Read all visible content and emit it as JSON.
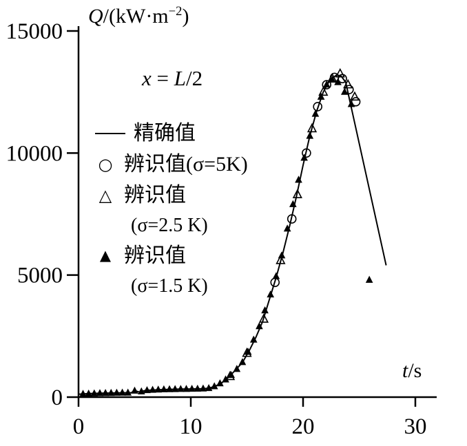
{
  "colors": {
    "ink": "#000000",
    "background": "#ffffff"
  },
  "chart_data": {
    "type": "line",
    "title": "",
    "ylabel": "Q/(kW·m⁻²)",
    "xlabel": "t/s",
    "annotation": "x = L/2",
    "ylabel_parts": {
      "sym": "Q",
      "unit_pre": "/(kW·m",
      "exp": "−2",
      "unit_post": ")"
    },
    "xlabel_parts": {
      "sym": "t",
      "rest": "/s"
    },
    "annotation_parts": {
      "sym1": "x",
      "mid": " = ",
      "sym2": "L",
      "post": "/2"
    },
    "xlim": [
      0,
      30
    ],
    "ylim": [
      0,
      15000
    ],
    "xticks": [
      0,
      10,
      20,
      30
    ],
    "yticks": [
      0,
      5000,
      10000,
      15000
    ],
    "grid": false,
    "legend_position": "upper-left-inside",
    "legend": [
      {
        "marker": "line",
        "label": "精确值"
      },
      {
        "marker": "circle-open",
        "label": "辨识值(σ=5K)"
      },
      {
        "marker": "triangle-open",
        "label": "辨识值",
        "sublabel": "(σ=2.5 K)"
      },
      {
        "marker": "triangle-filled",
        "label": "辨识值",
        "sublabel": "(σ=1.5 K)"
      }
    ],
    "series": [
      {
        "name": "精确值",
        "type": "line",
        "points": [
          [
            0,
            120
          ],
          [
            1,
            150
          ],
          [
            2,
            160
          ],
          [
            3,
            170
          ],
          [
            4,
            180
          ],
          [
            4.7,
            180
          ],
          [
            5,
            270
          ],
          [
            5.4,
            210
          ],
          [
            6,
            280
          ],
          [
            7,
            300
          ],
          [
            8,
            320
          ],
          [
            9,
            330
          ],
          [
            10,
            335
          ],
          [
            11,
            345
          ],
          [
            11.6,
            365
          ],
          [
            12.2,
            450
          ],
          [
            12.8,
            600
          ],
          [
            13.4,
            830
          ],
          [
            14,
            1120
          ],
          [
            14.6,
            1420
          ],
          [
            15.2,
            1900
          ],
          [
            15.8,
            2450
          ],
          [
            16.4,
            3100
          ],
          [
            17,
            4000
          ],
          [
            17.6,
            4900
          ],
          [
            18.2,
            5900
          ],
          [
            18.8,
            7000
          ],
          [
            19.4,
            8200
          ],
          [
            20,
            9500
          ],
          [
            20.6,
            10700
          ],
          [
            21.2,
            11700
          ],
          [
            21.8,
            12500
          ],
          [
            22.4,
            13000
          ],
          [
            23,
            13200
          ],
          [
            23.4,
            13150
          ],
          [
            23.8,
            12900
          ],
          [
            27.4,
            5400
          ]
        ]
      },
      {
        "name": "辨识值(σ=5K)",
        "type": "scatter",
        "marker": "circle-open",
        "points": [
          [
            17.5,
            4700
          ],
          [
            19,
            7300
          ],
          [
            20.3,
            10000
          ],
          [
            21.3,
            11900
          ],
          [
            22.1,
            12800
          ],
          [
            22.8,
            13100
          ],
          [
            23.5,
            13050
          ],
          [
            24.1,
            12600
          ],
          [
            24.7,
            12100
          ]
        ]
      },
      {
        "name": "辨识值(σ=2.5 K)",
        "type": "scatter",
        "marker": "triangle-open",
        "points": [
          [
            13.5,
            850
          ],
          [
            15,
            1800
          ],
          [
            16.5,
            3200
          ],
          [
            18,
            5600
          ],
          [
            19.5,
            8300
          ],
          [
            20.8,
            11000
          ],
          [
            21.8,
            12500
          ],
          [
            22.6,
            13050
          ],
          [
            23.3,
            13250
          ],
          [
            24,
            12800
          ],
          [
            24.6,
            12300
          ]
        ]
      },
      {
        "name": "辨识值(σ=1.5 K)",
        "type": "scatter",
        "marker": "triangle-filled",
        "points": [
          [
            0.4,
            130
          ],
          [
            0.9,
            140
          ],
          [
            1.4,
            150
          ],
          [
            1.9,
            160
          ],
          [
            2.4,
            165
          ],
          [
            2.9,
            170
          ],
          [
            3.4,
            175
          ],
          [
            3.9,
            180
          ],
          [
            4.4,
            180
          ],
          [
            5,
            260
          ],
          [
            5.6,
            230
          ],
          [
            6.1,
            280
          ],
          [
            6.6,
            295
          ],
          [
            7.1,
            305
          ],
          [
            7.6,
            315
          ],
          [
            8.1,
            320
          ],
          [
            8.6,
            325
          ],
          [
            9.1,
            330
          ],
          [
            9.6,
            332
          ],
          [
            10.1,
            336
          ],
          [
            10.6,
            340
          ],
          [
            11.1,
            348
          ],
          [
            11.6,
            365
          ],
          [
            12.1,
            440
          ],
          [
            12.6,
            560
          ],
          [
            13.1,
            720
          ],
          [
            13.6,
            900
          ],
          [
            14.1,
            1150
          ],
          [
            14.6,
            1430
          ],
          [
            15.1,
            1850
          ],
          [
            15.6,
            2350
          ],
          [
            16.1,
            2900
          ],
          [
            16.6,
            3550
          ],
          [
            17.1,
            4200
          ],
          [
            17.6,
            4950
          ],
          [
            18.1,
            5800
          ],
          [
            18.6,
            6900
          ],
          [
            19.1,
            7900
          ],
          [
            19.6,
            8900
          ],
          [
            20.1,
            9800
          ],
          [
            20.6,
            10700
          ],
          [
            21.1,
            11600
          ],
          [
            21.6,
            12300
          ],
          [
            22.1,
            12800
          ],
          [
            22.6,
            13000
          ],
          [
            23.1,
            12900
          ],
          [
            23.7,
            12500
          ],
          [
            24.3,
            12000
          ],
          [
            25.9,
            4800
          ]
        ]
      }
    ]
  }
}
